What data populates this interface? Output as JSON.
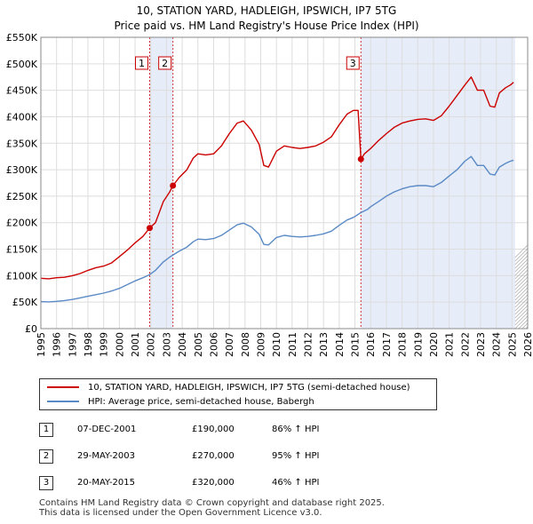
{
  "title_line1": "10, STATION YARD, HADLEIGH, IPSWICH, IP7 5TG",
  "title_line2": "Price paid vs. HM Land Registry's House Price Index (HPI)",
  "chart_data": {
    "type": "line",
    "xlim": [
      1995,
      2026
    ],
    "ylim": [
      0,
      550000
    ],
    "x_ticks": [
      "1995",
      "1996",
      "1997",
      "1998",
      "1999",
      "2000",
      "2001",
      "2002",
      "2003",
      "2004",
      "2005",
      "2006",
      "2007",
      "2008",
      "2009",
      "2010",
      "2011",
      "2012",
      "2013",
      "2014",
      "2015",
      "2016",
      "2017",
      "2018",
      "2019",
      "2020",
      "2021",
      "2022",
      "2023",
      "2024",
      "2025",
      "2026"
    ],
    "y_ticks": [
      {
        "value": 0,
        "label": "£0"
      },
      {
        "value": 50000,
        "label": "£50K"
      },
      {
        "value": 100000,
        "label": "£100K"
      },
      {
        "value": 150000,
        "label": "£150K"
      },
      {
        "value": 200000,
        "label": "£200K"
      },
      {
        "value": 250000,
        "label": "£250K"
      },
      {
        "value": 300000,
        "label": "£300K"
      },
      {
        "value": 350000,
        "label": "£350K"
      },
      {
        "value": 400000,
        "label": "£400K"
      },
      {
        "value": 450000,
        "label": "£450K"
      },
      {
        "value": 500000,
        "label": "£500K"
      },
      {
        "value": 550000,
        "label": "£550K"
      }
    ],
    "shaded_spans": [
      [
        2001.93,
        2003.41
      ],
      [
        2015.38,
        2025.2
      ]
    ],
    "series": [
      {
        "name": "10, STATION YARD, HADLEIGH, IPSWICH, IP7 5TG (semi-detached house)",
        "color": "#cc0000",
        "points": [
          [
            1995.0,
            95000
          ],
          [
            1995.5,
            94000
          ],
          [
            1996.0,
            96000
          ],
          [
            1996.5,
            97000
          ],
          [
            1997.0,
            100000
          ],
          [
            1997.5,
            104000
          ],
          [
            1998.0,
            110000
          ],
          [
            1998.5,
            115000
          ],
          [
            1999.0,
            118000
          ],
          [
            1999.5,
            124000
          ],
          [
            2000.0,
            136000
          ],
          [
            2000.5,
            148000
          ],
          [
            2001.0,
            162000
          ],
          [
            2001.5,
            174000
          ],
          [
            2001.93,
            190000
          ],
          [
            2002.3,
            200000
          ],
          [
            2002.8,
            240000
          ],
          [
            2003.2,
            258000
          ],
          [
            2003.41,
            270000
          ],
          [
            2003.8,
            285000
          ],
          [
            2004.3,
            300000
          ],
          [
            2004.7,
            322000
          ],
          [
            2005.0,
            330000
          ],
          [
            2005.5,
            328000
          ],
          [
            2006.0,
            330000
          ],
          [
            2006.5,
            345000
          ],
          [
            2007.0,
            368000
          ],
          [
            2007.5,
            388000
          ],
          [
            2007.9,
            392000
          ],
          [
            2008.4,
            375000
          ],
          [
            2008.9,
            348000
          ],
          [
            2009.2,
            308000
          ],
          [
            2009.5,
            305000
          ],
          [
            2010.0,
            335000
          ],
          [
            2010.5,
            345000
          ],
          [
            2011.0,
            342000
          ],
          [
            2011.5,
            340000
          ],
          [
            2012.0,
            342000
          ],
          [
            2012.5,
            345000
          ],
          [
            2013.0,
            352000
          ],
          [
            2013.5,
            362000
          ],
          [
            2014.0,
            385000
          ],
          [
            2014.5,
            405000
          ],
          [
            2014.9,
            412000
          ],
          [
            2015.2,
            412000
          ],
          [
            2015.38,
            320000
          ],
          [
            2015.6,
            330000
          ],
          [
            2016.0,
            340000
          ],
          [
            2016.5,
            355000
          ],
          [
            2017.0,
            368000
          ],
          [
            2017.5,
            380000
          ],
          [
            2018.0,
            388000
          ],
          [
            2018.5,
            392000
          ],
          [
            2019.0,
            395000
          ],
          [
            2019.5,
            396000
          ],
          [
            2020.0,
            393000
          ],
          [
            2020.5,
            402000
          ],
          [
            2021.0,
            420000
          ],
          [
            2021.5,
            440000
          ],
          [
            2022.0,
            460000
          ],
          [
            2022.4,
            475000
          ],
          [
            2022.8,
            450000
          ],
          [
            2023.2,
            450000
          ],
          [
            2023.6,
            420000
          ],
          [
            2023.9,
            418000
          ],
          [
            2024.2,
            445000
          ],
          [
            2024.6,
            455000
          ],
          [
            2024.9,
            460000
          ],
          [
            2025.1,
            465000
          ]
        ]
      },
      {
        "name": "HPI: Average price, semi-detached house, Babergh",
        "color": "#5a8ac6",
        "points": [
          [
            1995.0,
            51000
          ],
          [
            1995.5,
            50500
          ],
          [
            1996.0,
            51500
          ],
          [
            1996.5,
            53000
          ],
          [
            1997.0,
            55000
          ],
          [
            1997.5,
            58000
          ],
          [
            1998.0,
            61000
          ],
          [
            1998.5,
            64000
          ],
          [
            1999.0,
            67000
          ],
          [
            1999.5,
            71000
          ],
          [
            2000.0,
            76000
          ],
          [
            2000.5,
            83000
          ],
          [
            2001.0,
            90000
          ],
          [
            2001.5,
            96000
          ],
          [
            2001.93,
            102000
          ],
          [
            2002.3,
            110000
          ],
          [
            2002.8,
            126000
          ],
          [
            2003.2,
            135000
          ],
          [
            2003.41,
            139000
          ],
          [
            2003.8,
            146000
          ],
          [
            2004.3,
            154000
          ],
          [
            2004.7,
            164000
          ],
          [
            2005.0,
            169000
          ],
          [
            2005.5,
            168000
          ],
          [
            2006.0,
            170000
          ],
          [
            2006.5,
            176000
          ],
          [
            2007.0,
            186000
          ],
          [
            2007.5,
            196000
          ],
          [
            2007.9,
            199000
          ],
          [
            2008.4,
            192000
          ],
          [
            2008.9,
            178000
          ],
          [
            2009.2,
            159000
          ],
          [
            2009.5,
            158000
          ],
          [
            2010.0,
            172000
          ],
          [
            2010.5,
            176000
          ],
          [
            2011.0,
            174000
          ],
          [
            2011.5,
            173000
          ],
          [
            2012.0,
            174000
          ],
          [
            2012.5,
            176000
          ],
          [
            2013.0,
            179000
          ],
          [
            2013.5,
            184000
          ],
          [
            2014.0,
            195000
          ],
          [
            2014.5,
            205000
          ],
          [
            2014.9,
            210000
          ],
          [
            2015.38,
            219000
          ],
          [
            2015.8,
            225000
          ],
          [
            2016.0,
            230000
          ],
          [
            2016.5,
            240000
          ],
          [
            2017.0,
            250000
          ],
          [
            2017.5,
            258000
          ],
          [
            2018.0,
            264000
          ],
          [
            2018.5,
            268000
          ],
          [
            2019.0,
            270000
          ],
          [
            2019.5,
            270000
          ],
          [
            2020.0,
            268000
          ],
          [
            2020.5,
            276000
          ],
          [
            2021.0,
            288000
          ],
          [
            2021.5,
            300000
          ],
          [
            2022.0,
            316000
          ],
          [
            2022.4,
            325000
          ],
          [
            2022.8,
            308000
          ],
          [
            2023.2,
            308000
          ],
          [
            2023.6,
            292000
          ],
          [
            2023.9,
            290000
          ],
          [
            2024.2,
            305000
          ],
          [
            2024.6,
            312000
          ],
          [
            2024.9,
            316000
          ],
          [
            2025.1,
            318000
          ]
        ]
      }
    ],
    "markers": [
      {
        "label": "1",
        "x": 2001.93,
        "y": 190000
      },
      {
        "label": "2",
        "x": 2003.41,
        "y": 270000
      },
      {
        "label": "3",
        "x": 2015.38,
        "y": 320000
      }
    ]
  },
  "legend": {
    "red_label": "10, STATION YARD, HADLEIGH, IPSWICH, IP7 5TG (semi-detached house)",
    "blue_label": "HPI: Average price, semi-detached house, Babergh"
  },
  "sales": [
    {
      "num": "1",
      "date": "07-DEC-2001",
      "price": "£190,000",
      "hpi": "86% ↑ HPI"
    },
    {
      "num": "2",
      "date": "29-MAY-2003",
      "price": "£270,000",
      "hpi": "95% ↑ HPI"
    },
    {
      "num": "3",
      "date": "20-MAY-2015",
      "price": "£320,000",
      "hpi": "46% ↑ HPI"
    }
  ],
  "footer_line1": "Contains HM Land Registry data © Crown copyright and database right 2025.",
  "footer_line2": "This data is licensed under the Open Government Licence v3.0."
}
